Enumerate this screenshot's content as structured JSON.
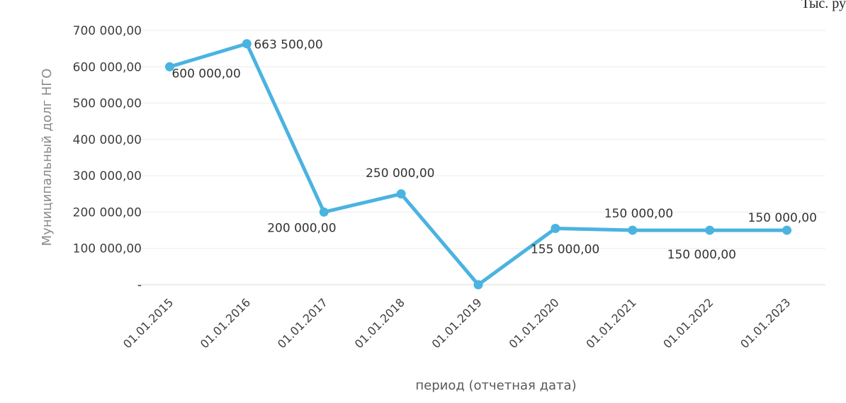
{
  "corner_note": "Тыс. ру",
  "chart_data": {
    "type": "line",
    "categories": [
      "01.01.2015",
      "01.01.2016",
      "01.01.2017",
      "01.01.2018",
      "01.01.2019",
      "01.01.2020",
      "01.01.2021",
      "01.01.2022",
      "01.01.2023"
    ],
    "series": [
      {
        "values": [
          600000,
          663500,
          200000,
          250000,
          0,
          155000,
          150000,
          150000,
          150000
        ],
        "data_labels": [
          "600 000,00",
          "663 500,00",
          "200 000,00",
          "250 000,00",
          "",
          "155 000,00",
          "150 000,00",
          "150 000,00",
          "150 000,00"
        ],
        "color": "#4bb3e0"
      }
    ],
    "title": "",
    "xlabel": "период (отчетная дата)",
    "ylabel": "Муниципальный долг НГО",
    "ylim": [
      0,
      700000
    ],
    "yticks": [
      0,
      100000,
      200000,
      300000,
      400000,
      500000,
      600000,
      700000
    ],
    "ytick_labels": [
      "-",
      "100 000,00",
      "200 000,00",
      "300 000,00",
      "400 000,00",
      "500 000,00",
      "600 000,00",
      "700 000,00"
    ],
    "grid": true,
    "legend": "none"
  }
}
